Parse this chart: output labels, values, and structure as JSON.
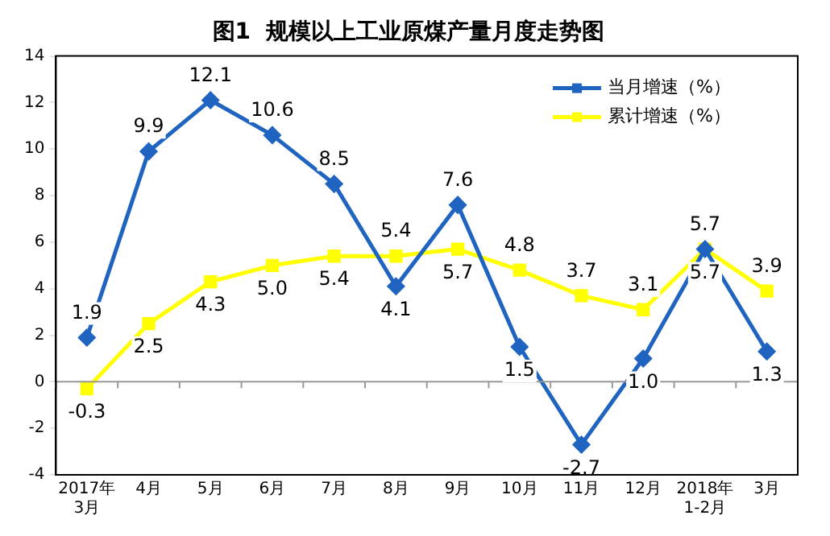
{
  "chart_data": {
    "type": "line",
    "title": "图1  规模以上工业原煤产量月度走势图",
    "categories": [
      "2017年3月",
      "4月",
      "5月",
      "6月",
      "7月",
      "8月",
      "9月",
      "10月",
      "11月",
      "12月",
      "2018年1-2月",
      "3月"
    ],
    "series": [
      {
        "name": "当月增速（%）",
        "color": "#1f64c0",
        "marker": "diamond",
        "values": [
          1.9,
          9.9,
          12.1,
          10.6,
          8.5,
          4.1,
          7.6,
          1.5,
          -2.7,
          1.0,
          5.7,
          1.3
        ],
        "value_labels": [
          "1.9",
          "9.9",
          "12.1",
          "10.6",
          "8.5",
          "4.1",
          "7.6",
          "1.5",
          "-2.7",
          "1.0",
          "5.7",
          "1.3"
        ]
      },
      {
        "name": "累计增速（%）",
        "color": "#ffff00",
        "marker": "square",
        "values": [
          -0.3,
          2.5,
          4.3,
          5.0,
          5.4,
          5.4,
          5.7,
          4.8,
          3.7,
          3.1,
          5.7,
          3.9
        ],
        "value_labels": [
          "-0.3",
          "2.5",
          "4.3",
          "5.0",
          "5.4",
          "5.4",
          "5.7",
          "4.8",
          "3.7",
          "3.1",
          "5.7",
          "3.9"
        ]
      }
    ],
    "ylim": [
      -4,
      14
    ],
    "yticks": [
      -4,
      -2,
      0,
      2,
      4,
      6,
      8,
      10,
      12,
      14
    ],
    "ref_lines": [
      {
        "axis": "y",
        "value": 0,
        "color": "#999999"
      }
    ],
    "legend": "top right",
    "line_style": "solid"
  }
}
